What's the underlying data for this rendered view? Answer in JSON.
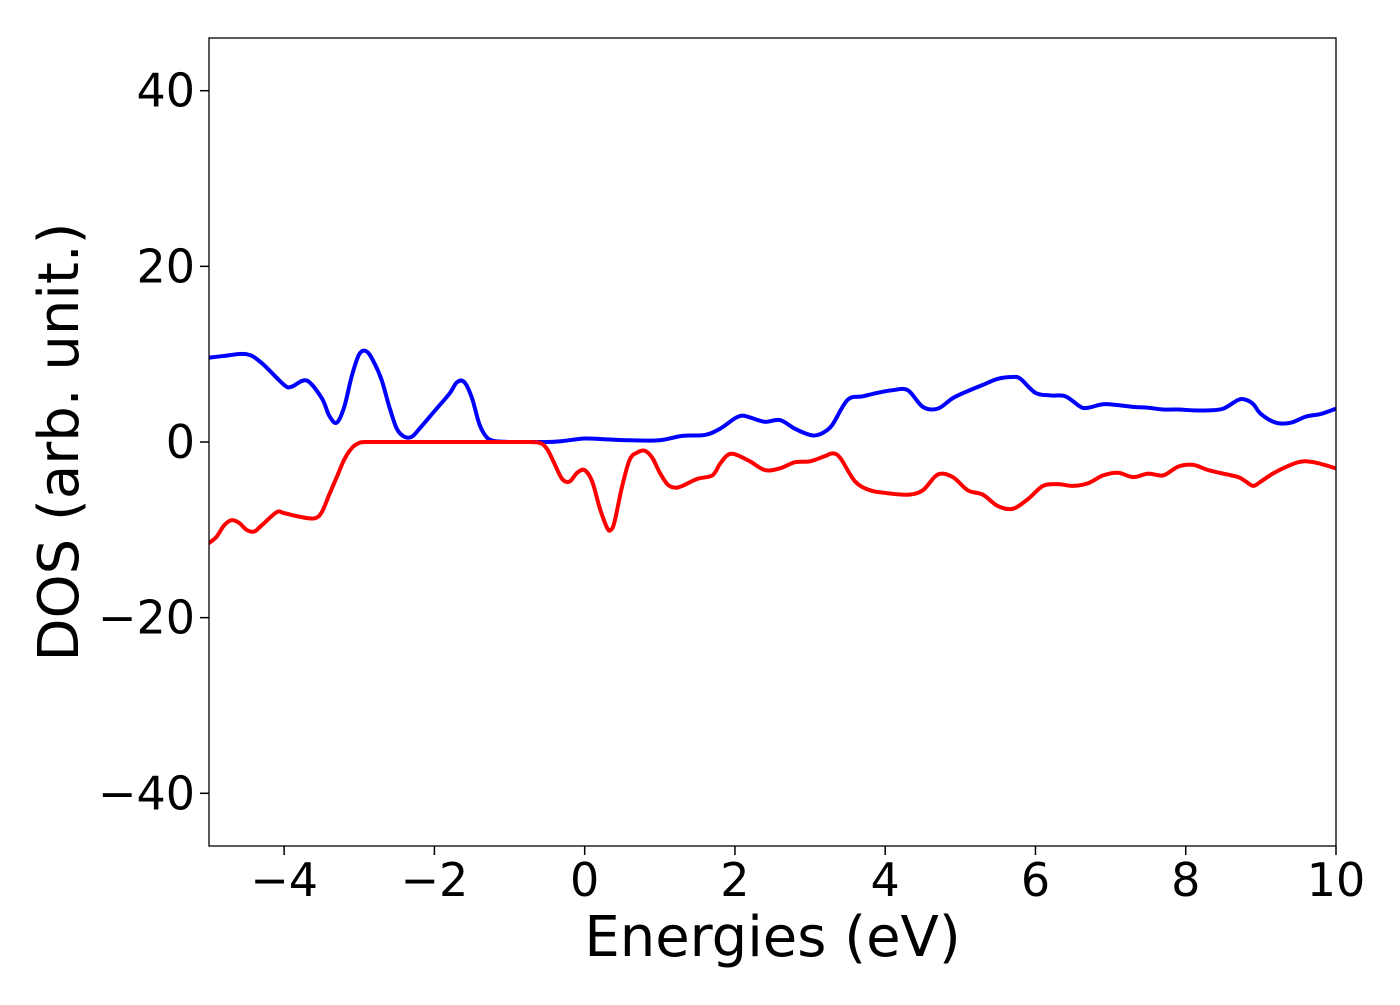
{
  "chart_data": {
    "type": "line",
    "title": "",
    "xlabel": "Energies (eV)",
    "ylabel": "DOS (arb. unit.)",
    "xlim": [
      -5,
      10
    ],
    "ylim": [
      -46,
      46
    ],
    "xticks": [
      -4,
      -2,
      0,
      2,
      4,
      6,
      8,
      10
    ],
    "xtick_labels": [
      "−4",
      "−2",
      "0",
      "2",
      "4",
      "6",
      "8",
      "10"
    ],
    "yticks": [
      -40,
      -20,
      0,
      20,
      40
    ],
    "ytick_labels": [
      "−40",
      "−20",
      "0",
      "20",
      "40"
    ],
    "grid": false,
    "legend": "none",
    "series": [
      {
        "color": "#0000ff",
        "x": [
          -5.0,
          -4.8,
          -4.5,
          -4.3,
          -4.0,
          -3.9,
          -3.7,
          -3.5,
          -3.4,
          -3.3,
          -3.2,
          -3.1,
          -3.0,
          -2.9,
          -2.8,
          -2.7,
          -2.6,
          -2.5,
          -2.4,
          -2.3,
          -2.2,
          -2.0,
          -1.8,
          -1.7,
          -1.6,
          -1.5,
          -1.4,
          -1.3,
          -1.2,
          -1.1,
          -1.0,
          -0.8,
          -0.5,
          -0.3,
          0.0,
          0.3,
          0.6,
          1.0,
          1.3,
          1.6,
          1.8,
          2.0,
          2.1,
          2.2,
          2.4,
          2.6,
          2.8,
          3.0,
          3.1,
          3.2,
          3.3,
          3.5,
          3.7,
          3.9,
          4.1,
          4.3,
          4.5,
          4.7,
          4.9,
          5.1,
          5.3,
          5.5,
          5.7,
          5.8,
          6.0,
          6.2,
          6.4,
          6.6,
          6.7,
          6.9,
          7.1,
          7.3,
          7.5,
          7.7,
          7.9,
          8.1,
          8.3,
          8.5,
          8.7,
          8.8,
          8.9,
          9.0,
          9.2,
          9.4,
          9.6,
          9.8,
          10.0
        ],
        "values": [
          9.6,
          9.8,
          10.0,
          9.0,
          6.5,
          6.3,
          7.0,
          5.0,
          3.0,
          2.2,
          4.0,
          7.5,
          10.0,
          10.3,
          9.0,
          7.0,
          4.0,
          1.5,
          0.6,
          0.6,
          1.5,
          3.5,
          5.5,
          6.8,
          6.8,
          5.0,
          2.0,
          0.5,
          0.1,
          0.05,
          0.0,
          0.0,
          0.0,
          0.1,
          0.4,
          0.3,
          0.2,
          0.2,
          0.7,
          0.8,
          1.5,
          2.7,
          3.0,
          2.8,
          2.3,
          2.5,
          1.5,
          0.8,
          0.8,
          1.2,
          2.0,
          4.8,
          5.2,
          5.6,
          5.9,
          5.9,
          4.0,
          3.8,
          5.0,
          5.8,
          6.5,
          7.2,
          7.4,
          7.2,
          5.6,
          5.3,
          5.2,
          4.0,
          3.9,
          4.3,
          4.2,
          4.0,
          3.9,
          3.7,
          3.7,
          3.6,
          3.6,
          3.8,
          4.8,
          4.8,
          4.3,
          3.2,
          2.2,
          2.2,
          2.9,
          3.2,
          3.8
        ]
      },
      {
        "color": "#ff0000",
        "x": [
          -5.0,
          -4.9,
          -4.8,
          -4.7,
          -4.6,
          -4.5,
          -4.4,
          -4.3,
          -4.1,
          -4.0,
          -3.8,
          -3.6,
          -3.5,
          -3.4,
          -3.3,
          -3.2,
          -3.1,
          -3.0,
          -2.9,
          -2.8,
          -2.6,
          -2.2,
          -1.8,
          -1.4,
          -1.0,
          -0.8,
          -0.6,
          -0.5,
          -0.4,
          -0.3,
          -0.2,
          -0.1,
          0.0,
          0.1,
          0.2,
          0.3,
          0.35,
          0.4,
          0.5,
          0.6,
          0.7,
          0.8,
          0.9,
          1.0,
          1.1,
          1.2,
          1.3,
          1.5,
          1.7,
          1.8,
          1.9,
          2.0,
          2.2,
          2.4,
          2.6,
          2.8,
          3.0,
          3.2,
          3.3,
          3.4,
          3.6,
          3.8,
          4.0,
          4.3,
          4.5,
          4.7,
          4.9,
          5.1,
          5.3,
          5.5,
          5.7,
          5.9,
          6.1,
          6.3,
          6.5,
          6.7,
          6.9,
          7.1,
          7.3,
          7.5,
          7.7,
          7.9,
          8.1,
          8.3,
          8.5,
          8.7,
          8.8,
          8.9,
          9.0,
          9.2,
          9.5,
          9.7,
          10.0
        ],
        "values": [
          -11.5,
          -10.8,
          -9.5,
          -8.9,
          -9.2,
          -10.0,
          -10.2,
          -9.5,
          -8.0,
          -8.1,
          -8.5,
          -8.7,
          -8.0,
          -6.0,
          -4.0,
          -2.0,
          -0.7,
          -0.1,
          0.0,
          0.0,
          0.0,
          0.0,
          0.0,
          0.0,
          0.0,
          0.0,
          -0.1,
          -0.8,
          -2.5,
          -4.2,
          -4.5,
          -3.5,
          -3.2,
          -4.5,
          -7.5,
          -9.8,
          -10.0,
          -9.0,
          -5.0,
          -2.0,
          -1.2,
          -1.0,
          -1.8,
          -3.5,
          -4.8,
          -5.2,
          -5.0,
          -4.2,
          -3.8,
          -2.5,
          -1.5,
          -1.4,
          -2.2,
          -3.2,
          -3.0,
          -2.3,
          -2.2,
          -1.6,
          -1.3,
          -1.8,
          -4.5,
          -5.5,
          -5.8,
          -6.0,
          -5.5,
          -3.7,
          -4.0,
          -5.5,
          -6.0,
          -7.3,
          -7.6,
          -6.5,
          -5.0,
          -4.8,
          -5.0,
          -4.7,
          -3.8,
          -3.5,
          -4.0,
          -3.6,
          -3.8,
          -2.8,
          -2.6,
          -3.2,
          -3.6,
          -4.0,
          -4.5,
          -5.0,
          -4.5,
          -3.4,
          -2.3,
          -2.3,
          -3.0
        ]
      }
    ]
  }
}
